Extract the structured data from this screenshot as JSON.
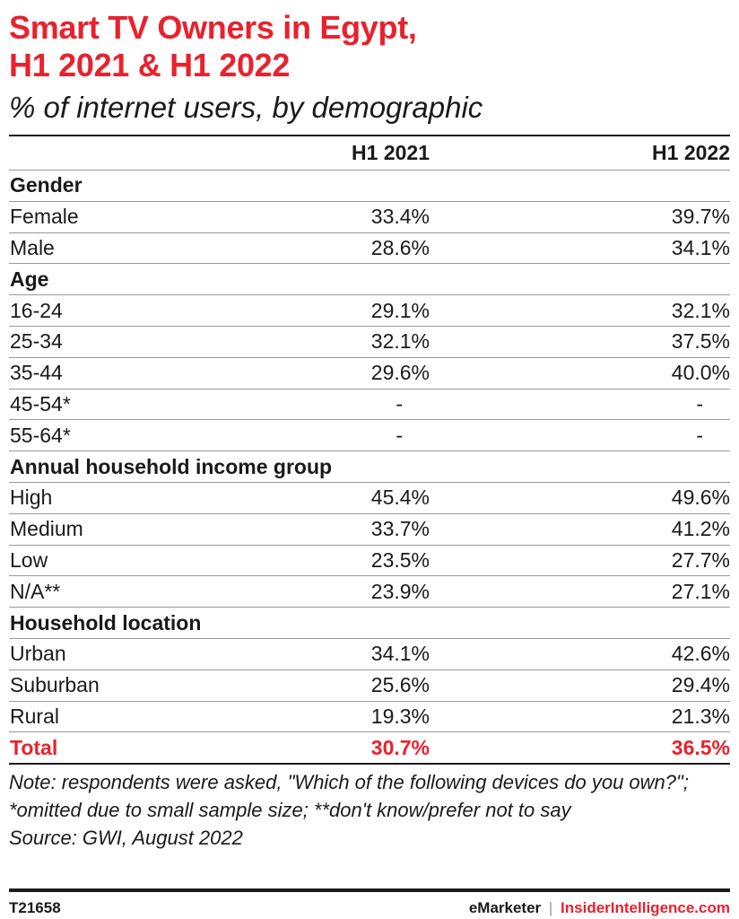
{
  "title_line1": "Smart TV Owners in Egypt,",
  "title_line2": "H1 2021 & H1 2022",
  "subtitle": "% of internet users, by demographic",
  "columns": [
    "H1 2021",
    "H1 2022"
  ],
  "chart_data": {
    "type": "table",
    "title": "Smart TV Owners in Egypt, H1 2021 & H1 2022",
    "subtitle": "% of internet users, by demographic",
    "columns": [
      "H1 2021",
      "H1 2022"
    ],
    "groups": [
      {
        "name": "Gender",
        "rows": [
          {
            "label": "Female",
            "values": [
              "33.4%",
              "39.7%"
            ]
          },
          {
            "label": "Male",
            "values": [
              "28.6%",
              "34.1%"
            ]
          }
        ]
      },
      {
        "name": "Age",
        "rows": [
          {
            "label": "16-24",
            "values": [
              "29.1%",
              "32.1%"
            ]
          },
          {
            "label": "25-34",
            "values": [
              "32.1%",
              "37.5%"
            ]
          },
          {
            "label": "35-44",
            "values": [
              "29.6%",
              "40.0%"
            ]
          },
          {
            "label": "45-54*",
            "values": [
              "-",
              "-"
            ]
          },
          {
            "label": "55-64*",
            "values": [
              "-",
              "-"
            ]
          }
        ]
      },
      {
        "name": "Annual household income group",
        "rows": [
          {
            "label": "High",
            "values": [
              "45.4%",
              "49.6%"
            ]
          },
          {
            "label": "Medium",
            "values": [
              "33.7%",
              "41.2%"
            ]
          },
          {
            "label": "Low",
            "values": [
              "23.5%",
              "27.7%"
            ]
          },
          {
            "label": "N/A**",
            "values": [
              "23.9%",
              "27.1%"
            ]
          }
        ]
      },
      {
        "name": "Household location",
        "rows": [
          {
            "label": "Urban",
            "values": [
              "34.1%",
              "42.6%"
            ]
          },
          {
            "label": "Suburban",
            "values": [
              "25.6%",
              "29.4%"
            ]
          },
          {
            "label": "Rural",
            "values": [
              "19.3%",
              "21.3%"
            ]
          }
        ]
      }
    ],
    "total": {
      "label": "Total",
      "values": [
        "30.7%",
        "36.5%"
      ]
    }
  },
  "note": "Note: respondents were asked, \"Which of the following devices do you own?\"; *omitted due to small sample size; **don't know/prefer not to say",
  "source": "Source: GWI, August 2022",
  "footer": {
    "chart_id": "T21658",
    "brand_emarketer": "eMarketer",
    "brand_separator": "|",
    "brand_insider": "InsiderIntelligence.com"
  },
  "colors": {
    "accent": "#e8222d",
    "text": "#1a1a1a",
    "rule": "#999999"
  }
}
